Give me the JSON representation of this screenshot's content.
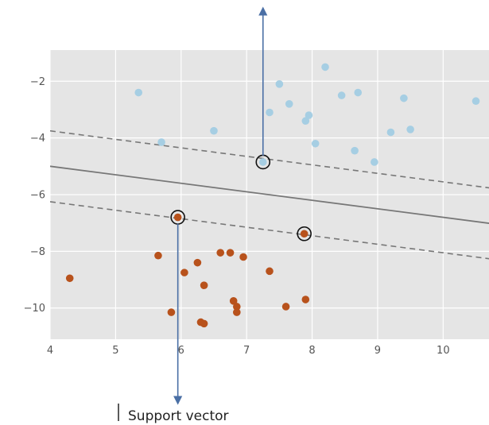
{
  "chart_data": {
    "type": "scatter",
    "title": "",
    "xlabel": "",
    "ylabel": "",
    "xlim": [
      4,
      10.7
    ],
    "ylim": [
      -11.1,
      -0.9
    ],
    "grid": true,
    "background": "#e5e5e5",
    "xticks": [
      4,
      5,
      6,
      7,
      8,
      9,
      10
    ],
    "yticks": [
      -2,
      -4,
      -6,
      -8,
      -10
    ],
    "series": [
      {
        "color": "#a6cee3",
        "points": [
          [
            5.35,
            -2.4
          ],
          [
            5.7,
            -4.15
          ],
          [
            6.5,
            -3.75
          ],
          [
            7.35,
            -3.1
          ],
          [
            7.5,
            -2.1
          ],
          [
            7.65,
            -2.8
          ],
          [
            7.9,
            -3.4
          ],
          [
            7.95,
            -3.2
          ],
          [
            8.05,
            -4.2
          ],
          [
            8.2,
            -1.5
          ],
          [
            8.45,
            -2.5
          ],
          [
            8.65,
            -4.45
          ],
          [
            8.7,
            -2.4
          ],
          [
            8.95,
            -4.85
          ],
          [
            9.2,
            -3.8
          ],
          [
            9.4,
            -2.6
          ],
          [
            9.5,
            -3.7
          ],
          [
            10.5,
            -2.7
          ],
          [
            7.25,
            -4.85
          ]
        ]
      },
      {
        "color": "#b8521c",
        "points": [
          [
            4.3,
            -8.95
          ],
          [
            5.65,
            -8.15
          ],
          [
            5.85,
            -10.15
          ],
          [
            6.05,
            -8.75
          ],
          [
            6.25,
            -8.4
          ],
          [
            6.3,
            -10.5
          ],
          [
            6.35,
            -10.55
          ],
          [
            6.35,
            -9.2
          ],
          [
            6.6,
            -8.05
          ],
          [
            6.75,
            -8.05
          ],
          [
            6.8,
            -9.75
          ],
          [
            6.85,
            -9.95
          ],
          [
            6.85,
            -10.15
          ],
          [
            6.95,
            -8.2
          ],
          [
            7.35,
            -8.7
          ],
          [
            7.6,
            -9.95
          ],
          [
            7.9,
            -9.7
          ],
          [
            5.95,
            -6.8
          ],
          [
            7.88,
            -7.38
          ]
        ]
      }
    ],
    "support_vectors": [
      [
        7.25,
        -4.85
      ],
      [
        5.95,
        -6.8
      ],
      [
        7.88,
        -7.38
      ]
    ],
    "decision_boundary": {
      "slope": -0.3,
      "intercept": -3.8
    },
    "margin_offset": 1.25,
    "annotation": {
      "text": "Support vector",
      "arrow_up_from": [
        7.25,
        -4.85
      ],
      "arrow_down_from": [
        5.95,
        -6.8
      ]
    }
  }
}
